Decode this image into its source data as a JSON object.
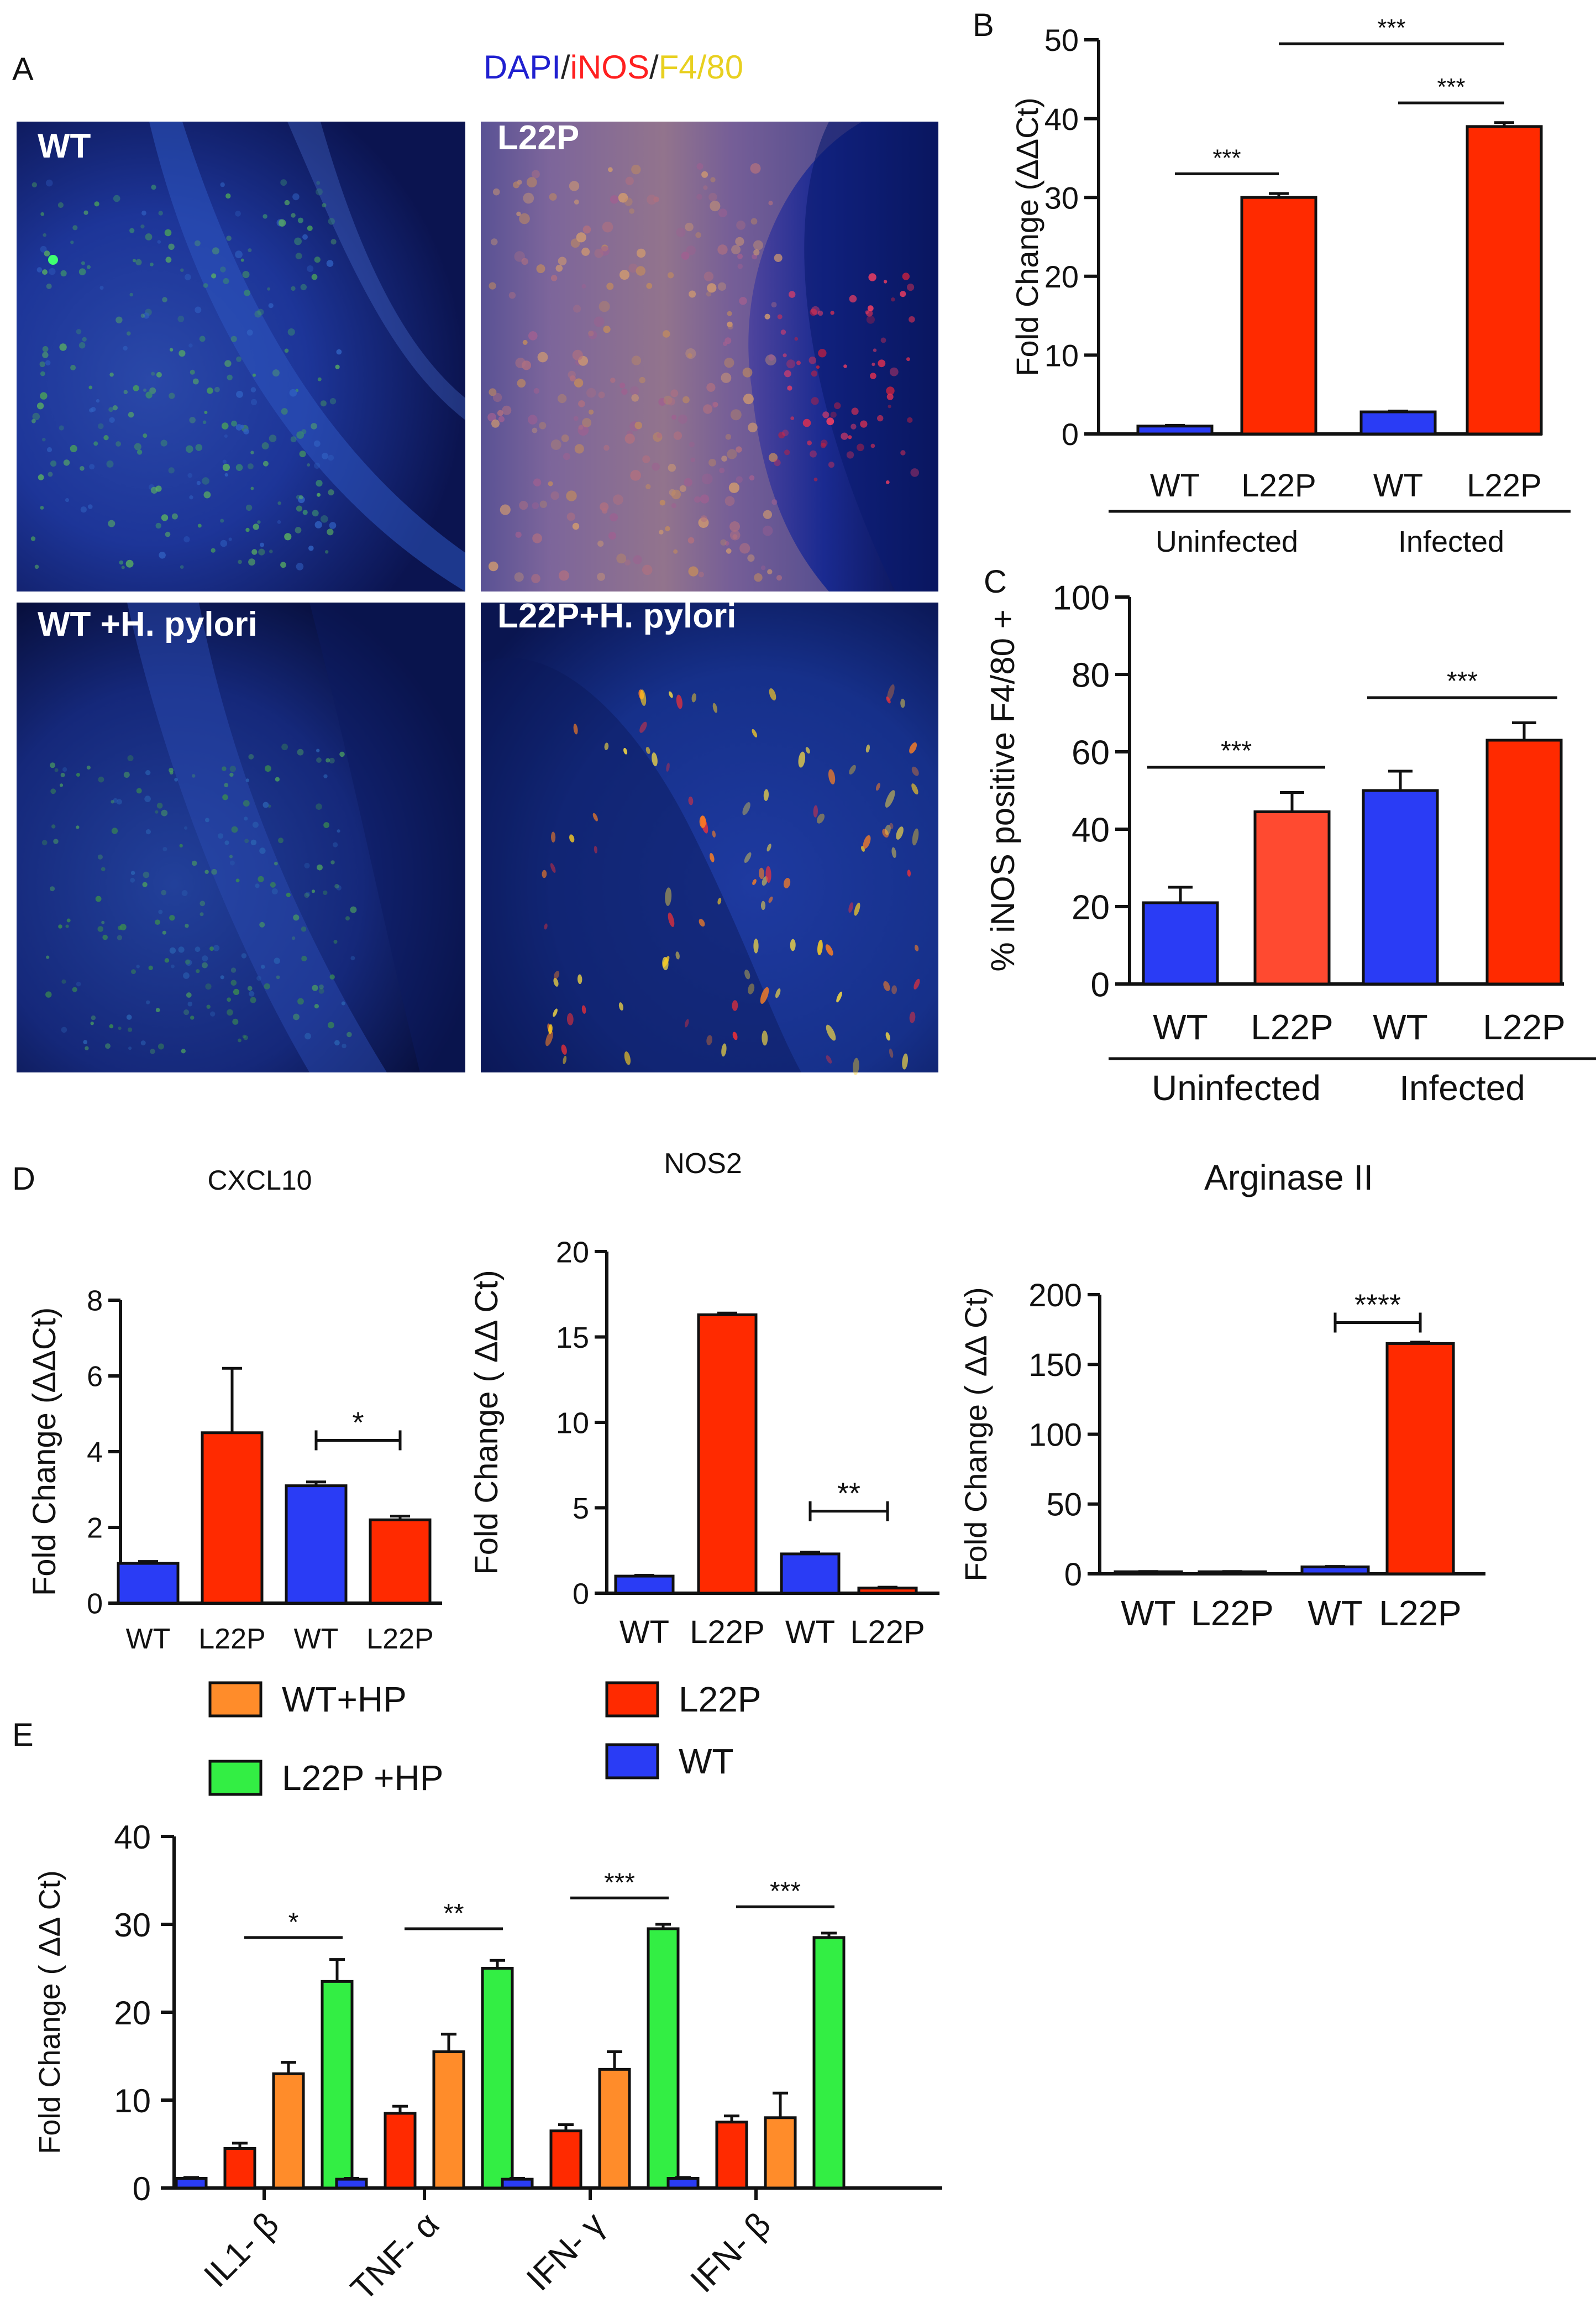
{
  "colors": {
    "blue": "#2a3cf5",
    "red": "#ff2a00",
    "red2": "#ff4a30",
    "orange": "#ff8c2a",
    "green": "#33ee44"
  },
  "panel_a": {
    "letter": "A",
    "stain_legend": [
      {
        "text": "DAPI",
        "color": "#2020d0"
      },
      {
        "text": "/",
        "color": "#222222"
      },
      {
        "text": "iNOS",
        "color": "#ff2020"
      },
      {
        "text": "/",
        "color": "#222222"
      },
      {
        "text": "F4/80",
        "color": "#e8d020"
      }
    ],
    "images": [
      {
        "label": "WT",
        "stain": "green-speckle"
      },
      {
        "label": "L22P",
        "stain": "orange-red"
      },
      {
        "label": "WT +H. pylori",
        "stain": "green-faint"
      },
      {
        "label": "L22P+H. pylori",
        "stain": "yellow-spots"
      }
    ]
  },
  "chart_data": [
    {
      "id": "B",
      "letter": "B",
      "type": "bar",
      "title": "",
      "ylabel": "Fold Change (ΔΔCt)",
      "ylim": [
        0,
        50
      ],
      "yticks": [
        0,
        10,
        20,
        30,
        40,
        50
      ],
      "categories": [
        "WT",
        "L22P",
        "WT",
        "L22P"
      ],
      "values": [
        1,
        30,
        2.8,
        39
      ],
      "errors": [
        0.1,
        0.5,
        0.1,
        0.5
      ],
      "bar_colors": [
        "blue",
        "red",
        "blue",
        "red"
      ],
      "groups": [
        {
          "label": "Uninfected",
          "bars": [
            0,
            1
          ]
        },
        {
          "label": "Infected",
          "bars": [
            2,
            3
          ]
        }
      ],
      "significance": [
        {
          "from": 0,
          "to": 1,
          "y": 33,
          "label": "***"
        },
        {
          "from": 1,
          "to": 3,
          "y": 49.5,
          "label": "***"
        },
        {
          "from": 2,
          "to": 3,
          "y": 42,
          "label": "***"
        }
      ]
    },
    {
      "id": "C",
      "letter": "C",
      "type": "bar",
      "title": "",
      "ylabel": "% iNOS positive F4/80 +",
      "ylim": [
        0,
        100
      ],
      "yticks": [
        0,
        20,
        40,
        60,
        80,
        100
      ],
      "categories": [
        "WT",
        "L22P",
        "WT",
        "L22P"
      ],
      "values": [
        21,
        44.5,
        50,
        63
      ],
      "errors": [
        4,
        5,
        5,
        4.5
      ],
      "bar_colors": [
        "blue",
        "red2",
        "blue",
        "red"
      ],
      "groups": [
        {
          "label": "Uninfected",
          "bars": [
            0,
            1
          ]
        },
        {
          "label": "Infected",
          "bars": [
            2,
            3
          ]
        }
      ],
      "significance": [
        {
          "from": 0,
          "to": 1,
          "y": 56,
          "label": "***"
        },
        {
          "from": 2,
          "to": 3,
          "y": 74,
          "label": "***"
        }
      ]
    },
    {
      "id": "D1",
      "letter": "D",
      "type": "bar",
      "title": "CXCL10",
      "ylabel": "Fold Change (ΔΔCt)",
      "ylim": [
        0,
        8
      ],
      "yticks": [
        0,
        2,
        4,
        6,
        8
      ],
      "categories": [
        "WT",
        "L22P",
        "WT",
        "L22P"
      ],
      "values": [
        1.05,
        4.5,
        3.1,
        2.2
      ],
      "errors": [
        0.05,
        1.7,
        0.1,
        0.1
      ],
      "bar_colors": [
        "blue",
        "red",
        "blue",
        "red"
      ],
      "significance": [
        {
          "from": 2,
          "to": 3,
          "y": 4.3,
          "label": "*",
          "capped": true
        }
      ]
    },
    {
      "id": "D2",
      "letter": "",
      "type": "bar",
      "title": "NOS2",
      "ylabel": "Fold Change ( ΔΔ Ct)",
      "ylim": [
        0,
        20
      ],
      "yticks": [
        0,
        5,
        10,
        15,
        20
      ],
      "categories": [
        "WT",
        "L22P",
        "WT",
        "L22P"
      ],
      "values": [
        1,
        16.3,
        2.3,
        0.3
      ],
      "errors": [
        0.05,
        0.1,
        0.1,
        0.05
      ],
      "bar_colors": [
        "blue",
        "red",
        "blue",
        "red"
      ],
      "significance": [
        {
          "from": 2,
          "to": 3,
          "y": 4.8,
          "label": "**",
          "capped": true
        }
      ]
    },
    {
      "id": "D3",
      "letter": "",
      "type": "bar",
      "title": "Arginase II",
      "ylabel": "Fold Change ( ΔΔ Ct)",
      "ylim": [
        0,
        200
      ],
      "yticks": [
        0,
        50,
        100,
        150,
        200
      ],
      "categories": [
        "WT",
        "L22P",
        "WT",
        "L22P"
      ],
      "values": [
        1.5,
        1.5,
        5,
        165
      ],
      "errors": [
        0.2,
        0.2,
        0.3,
        1
      ],
      "bar_colors": [
        "blue",
        "red",
        "blue",
        "red"
      ],
      "significance": [
        {
          "from": 2,
          "to": 3,
          "y": 180,
          "label": "****",
          "capped": true
        }
      ]
    },
    {
      "id": "E",
      "letter": "E",
      "type": "bar",
      "title": "",
      "ylabel": "Fold Change ( ΔΔ Ct)",
      "ylim": [
        0,
        40
      ],
      "yticks": [
        0,
        10,
        20,
        30,
        40
      ],
      "categories": [
        "IL1- β",
        "TNF- α",
        "IFN- γ",
        "IFN- β"
      ],
      "series": [
        {
          "name": "WT",
          "color": "blue",
          "values": [
            1.1,
            1,
            1,
            1.1
          ],
          "errors": [
            0.1,
            0.1,
            0.1,
            0.1
          ]
        },
        {
          "name": "L22P",
          "color": "red",
          "values": [
            4.5,
            8.5,
            6.5,
            7.5
          ],
          "errors": [
            0.6,
            0.8,
            0.7,
            0.7
          ]
        },
        {
          "name": "WT+HP",
          "color": "orange",
          "values": [
            13,
            15.5,
            13.5,
            8
          ],
          "errors": [
            1.3,
            2,
            2,
            2.8
          ]
        },
        {
          "name": "L22P +HP",
          "color": "green",
          "values": [
            23.5,
            25,
            29.5,
            28.5
          ],
          "errors": [
            2.5,
            0.9,
            0.5,
            0.5
          ]
        }
      ],
      "legend": [
        {
          "name": "WT+HP",
          "color": "orange"
        },
        {
          "name": "L22P",
          "color": "red"
        },
        {
          "name": "L22P +HP",
          "color": "green"
        },
        {
          "name": "WT",
          "color": "blue"
        }
      ],
      "significance": [
        {
          "category": 0,
          "y": 28.5,
          "label": "*"
        },
        {
          "category": 1,
          "y": 29.5,
          "label": "**"
        },
        {
          "category": 2,
          "y": 33,
          "label": "***"
        },
        {
          "category": 3,
          "y": 32,
          "label": "***"
        }
      ]
    }
  ]
}
